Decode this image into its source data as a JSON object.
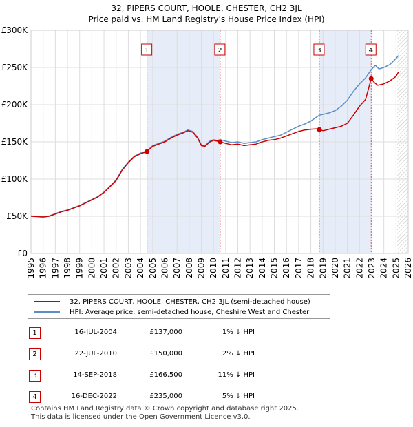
{
  "title_line1": "32, PIPERS COURT, HOOLE, CHESTER, CH2 3JL",
  "title_line2": "Price paid vs. HM Land Registry's House Price Index (HPI)",
  "chart_data": {
    "type": "line",
    "xlim": [
      1995,
      2026
    ],
    "ylim": [
      0,
      300000
    ],
    "x_ticks": [
      1995,
      1996,
      1997,
      1998,
      1999,
      2000,
      2001,
      2002,
      2003,
      2004,
      2005,
      2006,
      2007,
      2008,
      2009,
      2010,
      2011,
      2012,
      2013,
      2014,
      2015,
      2016,
      2017,
      2018,
      2019,
      2020,
      2021,
      2022,
      2023,
      2024,
      2025,
      2026
    ],
    "x_tick_labels": [
      "1995",
      "1996",
      "1997",
      "1998",
      "1999",
      "2000",
      "2001",
      "2002",
      "2003",
      "2004",
      "2005",
      "2006",
      "2007",
      "2008",
      "2009",
      "2010",
      "2011",
      "2012",
      "2013",
      "2014",
      "2015",
      "2016",
      "2017",
      "2018",
      "2019",
      "2020",
      "2021",
      "2022",
      "2023",
      "2024",
      "2025",
      "2026"
    ],
    "y_ticks": [
      0,
      50000,
      100000,
      150000,
      200000,
      250000,
      300000
    ],
    "y_tick_labels": [
      "£0",
      "£50K",
      "£100K",
      "£150K",
      "£200K",
      "£250K",
      "£300K"
    ],
    "future_start": 2025.1,
    "colors": {
      "property": "#cc0000",
      "hpi": "#5b8ec8",
      "shade": "#dce6f5",
      "future": "#cccccc",
      "grid": "#dddddd"
    },
    "series": [
      {
        "name": "32, PIPERS COURT, HOOLE, CHESTER, CH2 3JL (semi-detached house)",
        "x": [
          1995.0,
          1995.5,
          1996.0,
          1996.5,
          1997.0,
          1997.5,
          1998.0,
          1998.5,
          1999.0,
          1999.5,
          2000.0,
          2000.5,
          2001.0,
          2001.5,
          2002.0,
          2002.5,
          2003.0,
          2003.5,
          2004.0,
          2004.54,
          2004.54,
          2005.0,
          2005.5,
          2006.0,
          2006.5,
          2007.0,
          2007.5,
          2007.9,
          2008.3,
          2008.7,
          2009.0,
          2009.3,
          2009.7,
          2010.0,
          2010.3,
          2010.55,
          2010.55,
          2011.0,
          2011.5,
          2012.0,
          2012.5,
          2013.0,
          2013.5,
          2014.0,
          2014.5,
          2015.0,
          2015.5,
          2016.0,
          2016.5,
          2017.0,
          2017.5,
          2018.0,
          2018.5,
          2018.7,
          2018.7,
          2019.0,
          2019.5,
          2020.0,
          2020.5,
          2021.0,
          2021.5,
          2022.0,
          2022.5,
          2022.96,
          2022.96,
          2023.2,
          2023.5,
          2024.0,
          2024.5,
          2025.0,
          2025.2
        ],
        "values": [
          50000,
          49500,
          49000,
          50000,
          53000,
          56000,
          58000,
          61000,
          64000,
          68000,
          72000,
          76000,
          82000,
          90000,
          98000,
          112000,
          122000,
          130000,
          134000,
          137000,
          137000,
          144000,
          147000,
          150000,
          155000,
          159000,
          162000,
          165000,
          163000,
          155000,
          145000,
          144000,
          150000,
          152000,
          151000,
          150000,
          150000,
          148000,
          146000,
          147000,
          145000,
          146000,
          147000,
          150000,
          152000,
          153000,
          155000,
          158000,
          161000,
          164000,
          166000,
          167000,
          167500,
          166500,
          166500,
          165000,
          167000,
          169000,
          171000,
          175000,
          186000,
          198000,
          207000,
          235000,
          235000,
          230000,
          226000,
          228000,
          232000,
          238000,
          244000
        ]
      },
      {
        "name": "HPI: Average price, semi-detached house, Cheshire West and Chester",
        "x": [
          1995.0,
          1995.5,
          1996.0,
          1996.5,
          1997.0,
          1997.5,
          1998.0,
          1998.5,
          1999.0,
          1999.5,
          2000.0,
          2000.5,
          2001.0,
          2001.5,
          2002.0,
          2002.5,
          2003.0,
          2003.5,
          2004.0,
          2004.54,
          2005.0,
          2005.5,
          2006.0,
          2006.5,
          2007.0,
          2007.5,
          2007.9,
          2008.3,
          2008.7,
          2009.0,
          2009.3,
          2009.7,
          2010.0,
          2010.3,
          2010.55,
          2011.0,
          2011.5,
          2012.0,
          2012.5,
          2013.0,
          2013.5,
          2014.0,
          2014.5,
          2015.0,
          2015.5,
          2016.0,
          2016.5,
          2017.0,
          2017.5,
          2018.0,
          2018.7,
          2019.0,
          2019.5,
          2020.0,
          2020.5,
          2021.0,
          2021.5,
          2022.0,
          2022.5,
          2022.96,
          2023.3,
          2023.6,
          2024.0,
          2024.5,
          2025.0,
          2025.2
        ],
        "values": [
          50500,
          50000,
          49500,
          50500,
          53500,
          56500,
          58500,
          61500,
          64500,
          68500,
          72500,
          76500,
          82500,
          90500,
          99000,
          113000,
          123000,
          131000,
          135000,
          138000,
          145000,
          148000,
          151000,
          156000,
          160000,
          163000,
          166000,
          164000,
          156000,
          146000,
          145000,
          151000,
          153000,
          152000,
          153000,
          151000,
          149000,
          150000,
          148000,
          149000,
          150000,
          153000,
          155000,
          157000,
          159000,
          163000,
          167000,
          171000,
          174000,
          178000,
          186000,
          187000,
          189000,
          192000,
          198000,
          206000,
          218000,
          228000,
          236000,
          247000,
          253000,
          248000,
          250000,
          254000,
          262000,
          266000
        ]
      }
    ],
    "sales": [
      {
        "label": "1",
        "x": 2004.54,
        "value": 137000
      },
      {
        "label": "2",
        "x": 2010.55,
        "value": 150000
      },
      {
        "label": "3",
        "x": 2018.7,
        "value": 166500
      },
      {
        "label": "4",
        "x": 2022.96,
        "value": 235000
      }
    ],
    "shade_ranges": [
      [
        2004.54,
        2010.55
      ],
      [
        2018.7,
        2022.96
      ]
    ]
  },
  "legend": {
    "property_label": "32, PIPERS COURT, HOOLE, CHESTER, CH2 3JL (semi-detached house)",
    "hpi_label": "HPI: Average price, semi-detached house, Cheshire West and Chester"
  },
  "sales_table": [
    {
      "num": "1",
      "date": "16-JUL-2004",
      "price": "£137,000",
      "hpi": "1% ↓ HPI"
    },
    {
      "num": "2",
      "date": "22-JUL-2010",
      "price": "£150,000",
      "hpi": "2% ↓ HPI"
    },
    {
      "num": "3",
      "date": "14-SEP-2018",
      "price": "£166,500",
      "hpi": "11% ↓ HPI"
    },
    {
      "num": "4",
      "date": "16-DEC-2022",
      "price": "£235,000",
      "hpi": "5% ↓ HPI"
    }
  ],
  "footer_line1": "Contains HM Land Registry data © Crown copyright and database right 2025.",
  "footer_line2": "This data is licensed under the Open Government Licence v3.0."
}
